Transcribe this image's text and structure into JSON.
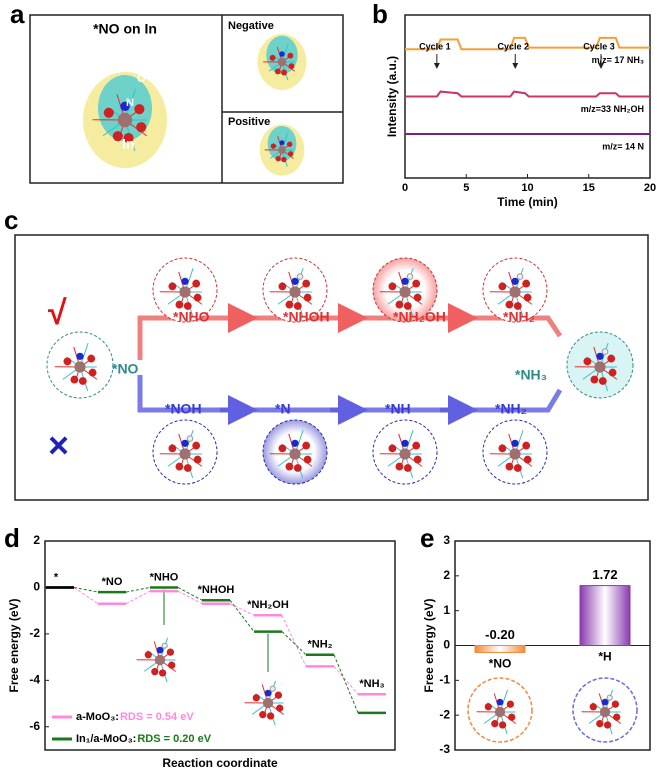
{
  "panel_letters": [
    "a",
    "b",
    "c",
    "d",
    "e"
  ],
  "panel_a": {
    "title": "*NO on In",
    "negative": "Negative",
    "positive": "Positive",
    "atom_n": "N",
    "atom_o": "O",
    "atom_in": "In"
  },
  "panel_c": {
    "check": "√",
    "cross": "×",
    "start": "*NO",
    "end": "*NH₃",
    "top_path": [
      "*NHO",
      "*NHOH",
      "*NH₂OH",
      "*NH₂"
    ],
    "bottom_path": [
      "*NOH",
      "*N",
      "*NH",
      "*NH₂"
    ]
  },
  "chart_data": [
    {
      "type": "line",
      "xlabel": "Time (min)",
      "ylabel": "Intensity (a.u.)",
      "annotations": [
        "Cycle 1",
        "Cycle 2",
        "Cycle 3"
      ],
      "x": [
        0,
        2.6,
        2.9,
        4.3,
        4.6,
        8.6,
        8.9,
        9.8,
        10.1,
        15.6,
        15.9,
        17.2,
        17.5,
        20
      ],
      "xlim": [
        0,
        20
      ],
      "xticks": [
        0,
        5,
        10,
        15,
        20
      ],
      "ylim": [
        0,
        10
      ],
      "series": [
        {
          "name": "m/z= 17 NH₃",
          "color": "#f5a033",
          "values": [
            7.9,
            7.9,
            8.5,
            8.5,
            7.9,
            7.9,
            8.6,
            8.6,
            8.0,
            8.0,
            8.6,
            8.6,
            8.0,
            8.0
          ]
        },
        {
          "name": "m/z=33 NH₂OH",
          "color": "#c8336a",
          "values": [
            5.0,
            5.0,
            5.3,
            5.2,
            5.0,
            5.0,
            5.3,
            5.2,
            5.0,
            5.0,
            5.2,
            5.2,
            5.0,
            5.0
          ]
        },
        {
          "name": "m/z= 14 N",
          "color": "#7a1f8a",
          "values": [
            2.7,
            2.7,
            2.7,
            2.7,
            2.7,
            2.7,
            2.7,
            2.7,
            2.7,
            2.7,
            2.7,
            2.7,
            2.7,
            2.7
          ]
        }
      ]
    },
    {
      "type": "energy",
      "xlabel": "Reaction coordinate",
      "ylabel": "Free energy (eV)",
      "categories": [
        "*",
        "*NO",
        "*NHO",
        "*NHOH",
        "*NH₂OH",
        "*NH₂",
        "*NH₃"
      ],
      "ylim": [
        -7,
        2
      ],
      "yticks": [
        2,
        0,
        -2,
        -4,
        -6
      ],
      "series": [
        {
          "name": "a-MoO₃:",
          "rds": "RDS = 0.54 eV",
          "color": "#ff88dd",
          "values": [
            0,
            -0.7,
            -0.16,
            -0.7,
            -1.2,
            -3.4,
            -4.6
          ]
        },
        {
          "name": "In₁/a-MoO₃:",
          "rds": "RDS = 0.20 eV",
          "color": "#1a7a1a",
          "values": [
            0,
            -0.2,
            0.0,
            -0.55,
            -1.9,
            -2.9,
            -5.4
          ]
        }
      ]
    },
    {
      "type": "bar",
      "ylabel": "Free energy (eV)",
      "categories": [
        "*NO",
        "*H"
      ],
      "values": [
        -0.2,
        1.72
      ],
      "value_labels": [
        "-0.20",
        "1.72"
      ],
      "colors": [
        "#f08a3c",
        "#8a3ab0"
      ],
      "ylim": [
        -3,
        3
      ],
      "yticks": [
        3,
        2,
        1,
        0,
        -1,
        -2,
        -3
      ]
    }
  ]
}
